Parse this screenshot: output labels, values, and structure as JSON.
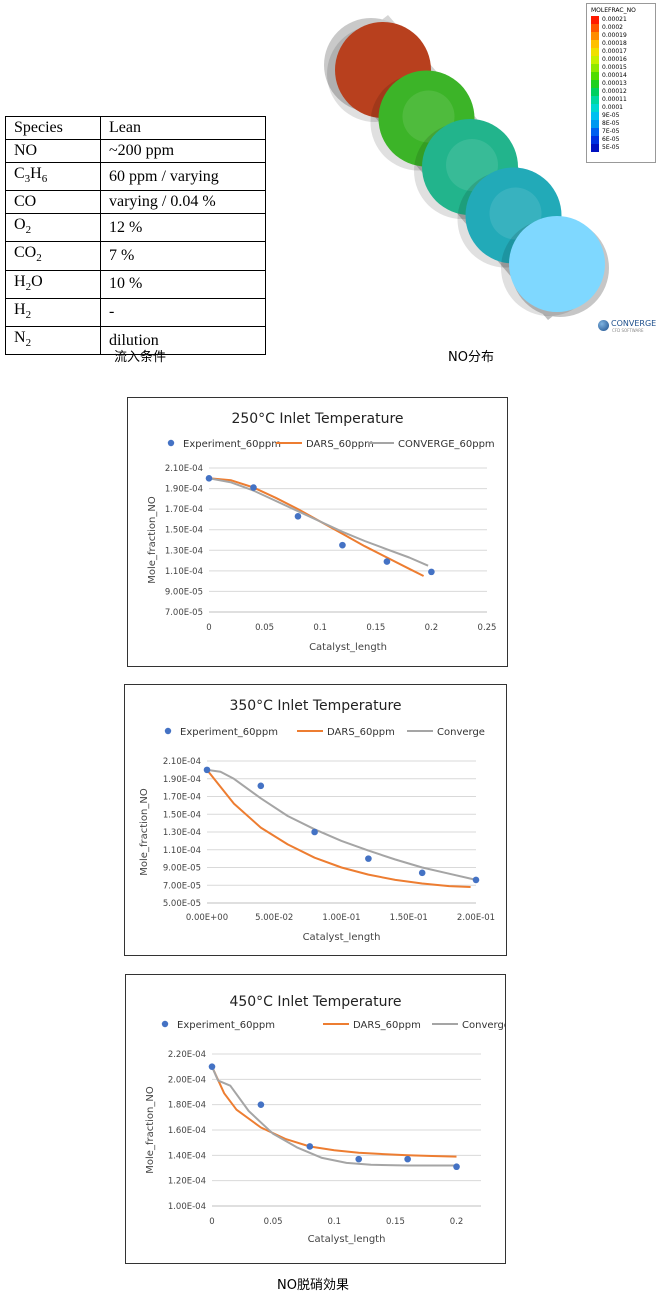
{
  "species_table": {
    "header": [
      "Species",
      "Lean"
    ],
    "rows": [
      {
        "species": "NO",
        "sub": "",
        "value": "~200 ppm"
      },
      {
        "species": "C",
        "sub": "3",
        "species2": "H",
        "sub2": "6",
        "value": "60 ppm / varying"
      },
      {
        "species": "CO",
        "sub": "",
        "value": "varying / 0.04 %"
      },
      {
        "species": "O",
        "sub": "2",
        "value": "12 %"
      },
      {
        "species": "CO",
        "sub": "2",
        "value": "7 %"
      },
      {
        "species": "H",
        "sub": "2",
        "species2": "O",
        "sub2": "",
        "value": "10 %"
      },
      {
        "species": "H",
        "sub": "2",
        "value": "-"
      },
      {
        "species": "N",
        "sub": "2",
        "value": "dilution"
      }
    ]
  },
  "captions": {
    "inflow": "流入条件",
    "no_distribution": "NO分布",
    "denox": "NO脱硝効果"
  },
  "contour_legend": {
    "title": "MOLEFRAC_NO",
    "entries": [
      {
        "label": "0.00021",
        "color": "#ff1a00"
      },
      {
        "label": "0.0002",
        "color": "#ff5500"
      },
      {
        "label": "0.00019",
        "color": "#ff8c00"
      },
      {
        "label": "0.00018",
        "color": "#ffc000"
      },
      {
        "label": "0.00017",
        "color": "#f0e000"
      },
      {
        "label": "0.00016",
        "color": "#c8f000"
      },
      {
        "label": "0.00015",
        "color": "#90e800"
      },
      {
        "label": "0.00014",
        "color": "#50dc00"
      },
      {
        "label": "0.00013",
        "color": "#20d020"
      },
      {
        "label": "0.00012",
        "color": "#00d060"
      },
      {
        "label": "0.00011",
        "color": "#00d8a0"
      },
      {
        "label": "0.0001",
        "color": "#00d8d0"
      },
      {
        "label": "9E-05",
        "color": "#00c0f0"
      },
      {
        "label": "8E-05",
        "color": "#0098f0"
      },
      {
        "label": "7E-05",
        "color": "#0060f0"
      },
      {
        "label": "6E-05",
        "color": "#0030e0"
      },
      {
        "label": "5E-05",
        "color": "#0010c0"
      }
    ],
    "logo_text": "CONVERGE",
    "logo_sub": "CFD SOFTWARE"
  },
  "contour_disks": [
    {
      "color": "#b8401e"
    },
    {
      "color": "#3cb428"
    },
    {
      "color": "#22b48c"
    },
    {
      "color": "#22aab8"
    },
    {
      "color": "#7fd8ff"
    }
  ],
  "chart_data": [
    {
      "type": "line",
      "title": "250°C Inlet Temperature",
      "xlabel": "Catalyst_length",
      "ylabel": "Mole_fraction_NO",
      "xlim": [
        0,
        0.25
      ],
      "ylim": [
        7e-05,
        0.00021
      ],
      "x_ticks": [
        "0",
        "0.05",
        "0.1",
        "0.15",
        "0.2",
        "0.25"
      ],
      "x_tick_values": [
        0,
        0.05,
        0.1,
        0.15,
        0.2,
        0.25
      ],
      "y_ticks": [
        "2.10E-04",
        "1.90E-04",
        "1.70E-04",
        "1.50E-04",
        "1.30E-04",
        "1.10E-04",
        "9.00E-05",
        "7.00E-05"
      ],
      "y_tick_values": [
        0.00021,
        0.00019,
        0.00017,
        0.00015,
        0.00013,
        0.00011,
        9e-05,
        7e-05
      ],
      "legend": "top",
      "series": [
        {
          "name": "Experiment_60ppm",
          "kind": "scatter",
          "color": "#4472c4",
          "x": [
            0,
            0.04,
            0.08,
            0.12,
            0.16,
            0.2
          ],
          "y": [
            0.0002,
            0.000191,
            0.000163,
            0.000135,
            0.000119,
            0.000109
          ]
        },
        {
          "name": "DARS_60ppm",
          "kind": "line",
          "color": "#ed7d31",
          "x": [
            0,
            0.02,
            0.04,
            0.06,
            0.08,
            0.1,
            0.12,
            0.14,
            0.16,
            0.18,
            0.193
          ],
          "y": [
            0.0002,
            0.000198,
            0.000191,
            0.000181,
            0.00017,
            0.000158,
            0.000146,
            0.000134,
            0.000123,
            0.000112,
            0.000105
          ]
        },
        {
          "name": "CONVERGE_60ppm",
          "kind": "line",
          "color": "#a5a5a5",
          "x": [
            0,
            0.02,
            0.04,
            0.06,
            0.08,
            0.1,
            0.12,
            0.14,
            0.16,
            0.18,
            0.197
          ],
          "y": [
            0.0002,
            0.000196,
            0.000188,
            0.000178,
            0.000168,
            0.000158,
            0.000148,
            0.000139,
            0.000131,
            0.000123,
            0.000115
          ]
        }
      ]
    },
    {
      "type": "line",
      "title": "350°C Inlet Temperature",
      "xlabel": "Catalyst_length",
      "ylabel": "Mole_fraction_NO",
      "xlim": [
        0,
        0.2
      ],
      "ylim": [
        5e-05,
        0.00021
      ],
      "x_ticks": [
        "0.00E+00",
        "5.00E-02",
        "1.00E-01",
        "1.50E-01",
        "2.00E-01"
      ],
      "x_tick_values": [
        0,
        0.05,
        0.1,
        0.15,
        0.2
      ],
      "y_ticks": [
        "2.10E-04",
        "1.90E-04",
        "1.70E-04",
        "1.50E-04",
        "1.30E-04",
        "1.10E-04",
        "9.00E-05",
        "7.00E-05",
        "5.00E-05"
      ],
      "y_tick_values": [
        0.00021,
        0.00019,
        0.00017,
        0.00015,
        0.00013,
        0.00011,
        9e-05,
        7e-05,
        5e-05
      ],
      "legend": "top",
      "series": [
        {
          "name": "Experiment_60ppm",
          "kind": "scatter",
          "color": "#4472c4",
          "x": [
            0,
            0.04,
            0.08,
            0.12,
            0.16,
            0.2
          ],
          "y": [
            0.0002,
            0.000182,
            0.00013,
            0.0001,
            8.4e-05,
            7.6e-05
          ]
        },
        {
          "name": "DARS_60ppm",
          "kind": "line",
          "color": "#ed7d31",
          "x": [
            0,
            0.02,
            0.04,
            0.06,
            0.08,
            0.1,
            0.12,
            0.14,
            0.16,
            0.18,
            0.196
          ],
          "y": [
            0.0002,
            0.000162,
            0.000135,
            0.000116,
            0.000101,
            9e-05,
            8.2e-05,
            7.6e-05,
            7.2e-05,
            6.9e-05,
            6.8e-05
          ]
        },
        {
          "name": "Converge",
          "kind": "line",
          "color": "#a5a5a5",
          "x": [
            0,
            0.01,
            0.02,
            0.04,
            0.06,
            0.08,
            0.1,
            0.12,
            0.14,
            0.16,
            0.18,
            0.2
          ],
          "y": [
            0.0002,
            0.000198,
            0.00019,
            0.000168,
            0.000148,
            0.000133,
            0.00012,
            0.000109,
            9.9e-05,
            9e-05,
            8.3e-05,
            7.6e-05
          ]
        }
      ]
    },
    {
      "type": "line",
      "title": "450°C Inlet Temperature",
      "xlabel": "Catalyst_length",
      "ylabel": "Mole_fraction_NO",
      "xlim": [
        0,
        0.22
      ],
      "ylim": [
        0.0001,
        0.00022
      ],
      "x_ticks": [
        "0",
        "0.05",
        "0.1",
        "0.15",
        "0.2"
      ],
      "x_tick_values": [
        0,
        0.05,
        0.1,
        0.15,
        0.2
      ],
      "y_ticks": [
        "2.20E-04",
        "2.00E-04",
        "1.80E-04",
        "1.60E-04",
        "1.40E-04",
        "1.20E-04",
        "1.00E-04"
      ],
      "y_tick_values": [
        0.00022,
        0.0002,
        0.00018,
        0.00016,
        0.00014,
        0.00012,
        0.0001
      ],
      "legend": "top",
      "series": [
        {
          "name": "Experiment_60ppm",
          "kind": "scatter",
          "color": "#4472c4",
          "x": [
            0,
            0.04,
            0.08,
            0.12,
            0.16,
            0.2
          ],
          "y": [
            0.00021,
            0.00018,
            0.000147,
            0.000137,
            0.000137,
            0.000131
          ]
        },
        {
          "name": "DARS_60ppm",
          "kind": "line",
          "color": "#ed7d31",
          "x": [
            0,
            0.01,
            0.02,
            0.04,
            0.06,
            0.08,
            0.1,
            0.12,
            0.14,
            0.16,
            0.18,
            0.2
          ],
          "y": [
            0.00021,
            0.000189,
            0.000176,
            0.000162,
            0.000153,
            0.000147,
            0.000144,
            0.000142,
            0.000141,
            0.00014,
            0.0001395,
            0.000139
          ]
        },
        {
          "name": "Converge",
          "kind": "line",
          "color": "#a5a5a5",
          "x": [
            0,
            0.005,
            0.015,
            0.03,
            0.05,
            0.07,
            0.09,
            0.11,
            0.13,
            0.16,
            0.2
          ],
          "y": [
            0.00021,
            0.000199,
            0.000195,
            0.000175,
            0.000157,
            0.000146,
            0.000138,
            0.000134,
            0.0001325,
            0.000132,
            0.000132
          ]
        }
      ]
    }
  ]
}
